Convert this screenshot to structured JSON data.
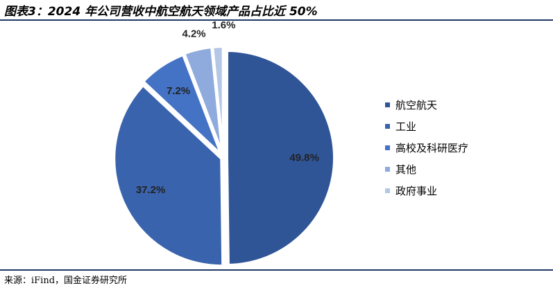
{
  "title": "图表3：2024 年公司营收中航空航天领域产品占比近 50%",
  "source": "来源：iFind，国金证券研究所",
  "chart_data": {
    "type": "pie",
    "unit": "%",
    "slices": [
      {
        "label": "航空航天",
        "value": 49.8,
        "value_label": "49.8%",
        "color": "#2f5597"
      },
      {
        "label": "工业",
        "value": 37.2,
        "value_label": "37.2%",
        "color": "#3a63ad"
      },
      {
        "label": "高校及科研医疗",
        "value": 7.2,
        "value_label": "7.2%",
        "color": "#4472c4"
      },
      {
        "label": "其他",
        "value": 4.2,
        "value_label": "4.2%",
        "color": "#8faadc"
      },
      {
        "label": "政府事业",
        "value": 1.6,
        "value_label": "1.6%",
        "color": "#b4c7e7"
      }
    ],
    "legend_position": "right"
  }
}
